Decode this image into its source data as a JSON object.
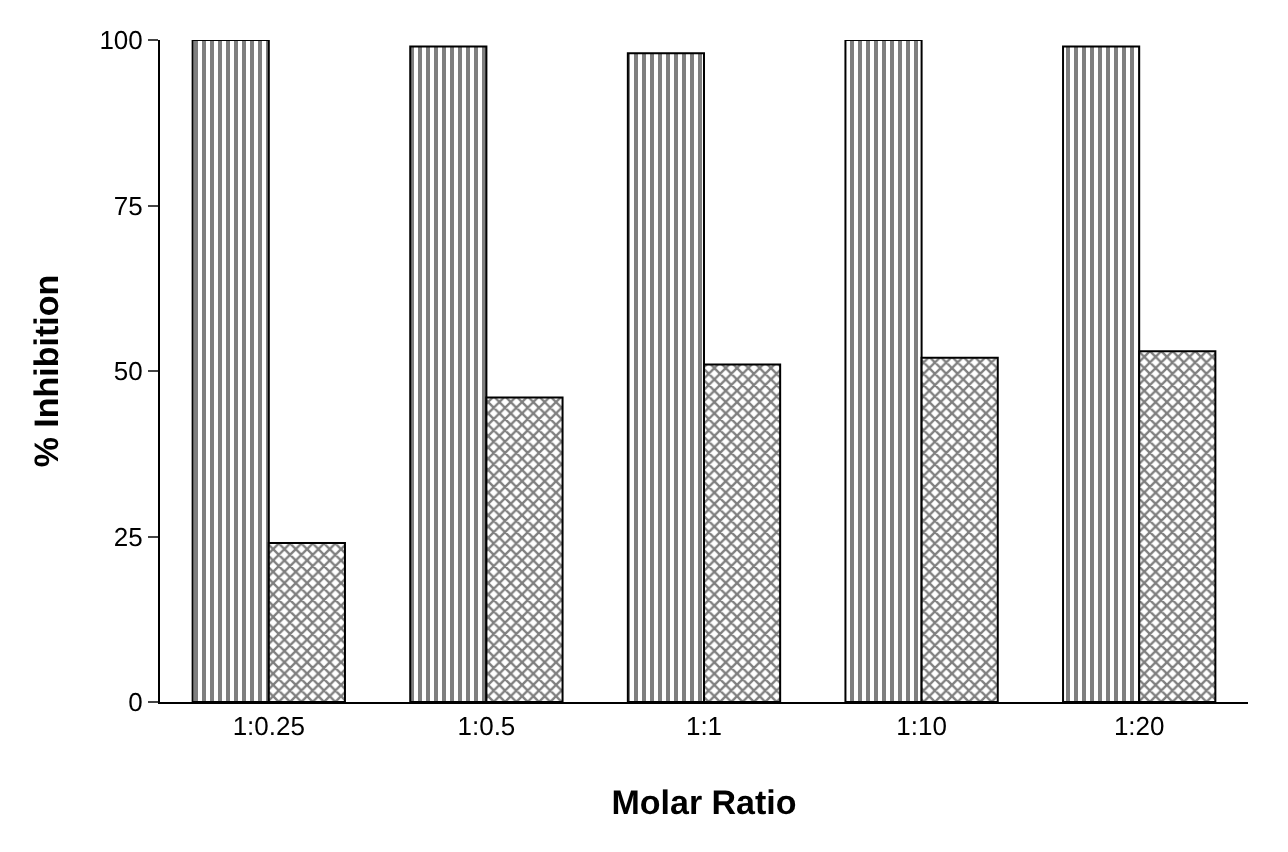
{
  "chart_data": {
    "type": "bar",
    "xlabel": "Molar Ratio",
    "ylabel": "% Inhibition",
    "categories": [
      "1:0.25",
      "1:0.5",
      "1:1",
      "1:10",
      "1:20"
    ],
    "series": [
      {
        "color": "#000000",
        "values": [
          100,
          99,
          98,
          100,
          99
        ]
      },
      {
        "color": "#000000",
        "values": [
          24,
          46,
          51,
          52,
          53
        ]
      }
    ],
    "ylim": [
      0,
      100
    ],
    "yticks": [
      0,
      25,
      50,
      75,
      100
    ],
    "legend": false
  }
}
